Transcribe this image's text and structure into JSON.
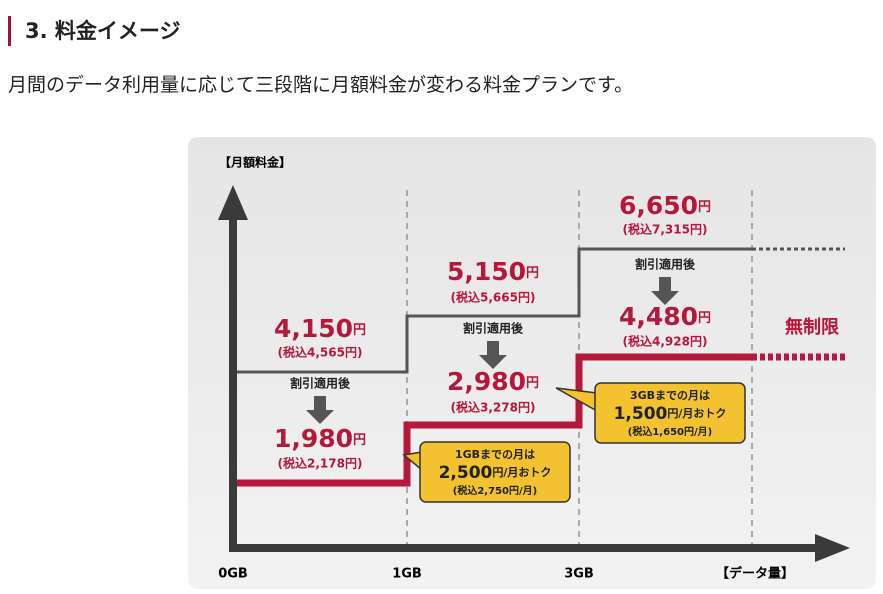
{
  "heading": "3. 料金イメージ",
  "intro": "月間のデータ利用量に応じて三段階に月額料金が変わる料金プランです。",
  "diagram": {
    "y_label": "【月額料金】",
    "x_label": "【データ量】",
    "x_marks": [
      "0GB",
      "1GB",
      "3GB"
    ],
    "unlimited": "無制限",
    "tiers": [
      {
        "price": "4,150",
        "unit": "円",
        "tax": "(税込4,565円)",
        "discount_label": "割引適用後",
        "discounted": "1,980",
        "discounted_unit": "円",
        "discounted_tax": "(税込2,178円)"
      },
      {
        "price": "5,150",
        "unit": "円",
        "tax": "(税込5,665円)",
        "discount_label": "割引適用後",
        "discounted": "2,980",
        "discounted_unit": "円",
        "discounted_tax": "(税込3,278円)"
      },
      {
        "price": "6,650",
        "unit": "円",
        "tax": "(税込7,315円)",
        "discount_label": "割引適用後",
        "discounted": "4,480",
        "discounted_unit": "円",
        "discounted_tax": "(税込4,928円)"
      }
    ],
    "callouts": [
      {
        "line1": "1GBまでの月は",
        "amount": "2,500",
        "suffix": "円/月おトク",
        "tax": "(税込2,750円/月)"
      },
      {
        "line1": "3GBまでの月は",
        "amount": "1,500",
        "suffix": "円/月おトク",
        "tax": "(税込1,650円/月)"
      }
    ]
  }
}
